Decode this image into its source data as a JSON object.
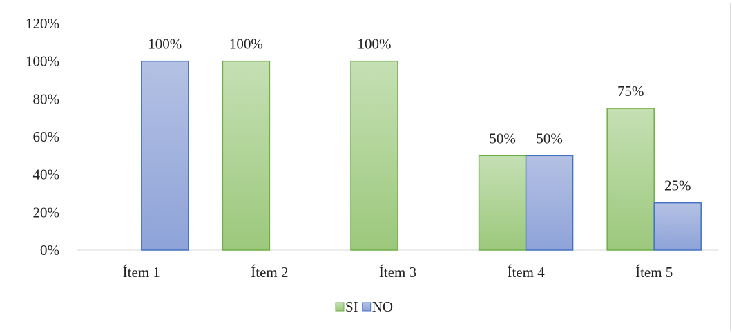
{
  "chart_data": {
    "type": "bar",
    "title": "",
    "xlabel": "",
    "ylabel": "",
    "categories": [
      "Ítem 1",
      "Ítem 2",
      "Ítem 3",
      "Ítem 4",
      "Ítem 5"
    ],
    "series": [
      {
        "name": "SI",
        "values": [
          0,
          100,
          100,
          50,
          75
        ],
        "labels": [
          "",
          "100%",
          "100%",
          "50%",
          "75%"
        ],
        "fill": "#a9d18e",
        "stroke": "#70ad47"
      },
      {
        "name": "NO",
        "values": [
          100,
          0,
          0,
          50,
          25
        ],
        "labels": [
          "100%",
          "",
          "",
          "50%",
          "25%"
        ],
        "fill": "#a0b0dc",
        "stroke": "#4472c4"
      }
    ],
    "ylim": [
      0,
      120
    ],
    "yticks": [
      "0%",
      "20%",
      "40%",
      "60%",
      "80%",
      "100%",
      "120%"
    ],
    "ytick_values": [
      0,
      20,
      40,
      60,
      80,
      100,
      120
    ],
    "grid": false,
    "legend_position": "bottom"
  }
}
